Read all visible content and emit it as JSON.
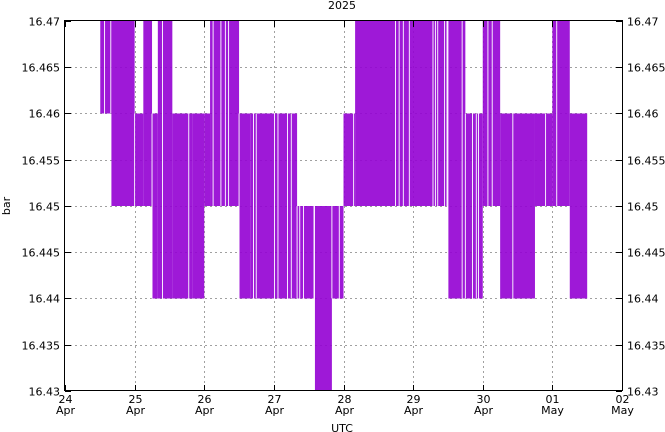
{
  "chart_data": {
    "type": "line",
    "title": "2025",
    "xlabel": "UTC",
    "ylabel": "bar",
    "ylim": [
      16.43,
      16.47
    ],
    "yticks": [
      "16.43",
      "16.435",
      "16.44",
      "16.445",
      "16.45",
      "16.455",
      "16.46",
      "16.465",
      "16.47"
    ],
    "xlim": [
      "2025-04-24",
      "2025-05-02"
    ],
    "xticks": [
      {
        "day": "24",
        "month": "Apr"
      },
      {
        "day": "25",
        "month": "Apr"
      },
      {
        "day": "26",
        "month": "Apr"
      },
      {
        "day": "27",
        "month": "Apr"
      },
      {
        "day": "28",
        "month": "Apr"
      },
      {
        "day": "29",
        "month": "Apr"
      },
      {
        "day": "30",
        "month": "Apr"
      },
      {
        "day": "01",
        "month": "May"
      },
      {
        "day": "02",
        "month": "May"
      }
    ],
    "grid": true,
    "series": [
      {
        "color": "#9400d3",
        "oscillation_bands": [
          {
            "from": "2025-04-24 12:00",
            "to": "2025-04-24 16:00",
            "low": 16.46,
            "high": 16.47
          },
          {
            "from": "2025-04-24 16:00",
            "to": "2025-04-25 00:00",
            "low": 16.45,
            "high": 16.47
          },
          {
            "from": "2025-04-25 00:00",
            "to": "2025-04-25 03:00",
            "low": 16.45,
            "high": 16.46
          },
          {
            "from": "2025-04-25 03:00",
            "to": "2025-04-25 06:00",
            "low": 16.45,
            "high": 16.47
          },
          {
            "from": "2025-04-25 06:00",
            "to": "2025-04-25 08:00",
            "low": 16.44,
            "high": 16.46
          },
          {
            "from": "2025-04-25 08:00",
            "to": "2025-04-25 13:00",
            "low": 16.44,
            "high": 16.47
          },
          {
            "from": "2025-04-25 13:00",
            "to": "2025-04-25 20:00",
            "low": 16.44,
            "high": 16.46
          },
          {
            "from": "2025-04-25 20:00",
            "to": "2025-04-26 00:00",
            "low": 16.44,
            "high": 16.46
          },
          {
            "from": "2025-04-26 00:00",
            "to": "2025-04-26 02:00",
            "low": 16.45,
            "high": 16.46
          },
          {
            "from": "2025-04-26 02:00",
            "to": "2025-04-26 12:00",
            "low": 16.45,
            "high": 16.47
          },
          {
            "from": "2025-04-26 12:00",
            "to": "2025-04-26 16:00",
            "low": 16.44,
            "high": 16.46
          },
          {
            "from": "2025-04-26 16:00",
            "to": "2025-04-27 06:00",
            "low": 16.44,
            "high": 16.46
          },
          {
            "from": "2025-04-27 06:00",
            "to": "2025-04-27 08:00",
            "low": 16.44,
            "high": 16.46
          },
          {
            "from": "2025-04-27 08:00",
            "to": "2025-04-27 14:00",
            "low": 16.44,
            "high": 16.45
          },
          {
            "from": "2025-04-27 14:00",
            "to": "2025-04-27 20:00",
            "low": 16.43,
            "high": 16.45
          },
          {
            "from": "2025-04-27 20:00",
            "to": "2025-04-28 00:00",
            "low": 16.44,
            "high": 16.45
          },
          {
            "from": "2025-04-28 00:00",
            "to": "2025-04-28 04:00",
            "low": 16.45,
            "high": 16.46
          },
          {
            "from": "2025-04-28 04:00",
            "to": "2025-04-29 12:00",
            "low": 16.45,
            "high": 16.47
          },
          {
            "from": "2025-04-29 12:00",
            "to": "2025-04-29 18:00",
            "low": 16.44,
            "high": 16.47
          },
          {
            "from": "2025-04-29 18:00",
            "to": "2025-04-30 00:00",
            "low": 16.44,
            "high": 16.46
          },
          {
            "from": "2025-04-30 00:00",
            "to": "2025-04-30 06:00",
            "low": 16.45,
            "high": 16.47
          },
          {
            "from": "2025-04-30 06:00",
            "to": "2025-04-30 18:00",
            "low": 16.44,
            "high": 16.46
          },
          {
            "from": "2025-04-30 18:00",
            "to": "2025-05-01 00:00",
            "low": 16.45,
            "high": 16.46
          },
          {
            "from": "2025-05-01 00:00",
            "to": "2025-05-01 06:00",
            "low": 16.45,
            "high": 16.47
          },
          {
            "from": "2025-05-01 06:00",
            "to": "2025-05-01 12:00",
            "low": 16.44,
            "high": 16.46
          }
        ]
      }
    ]
  }
}
